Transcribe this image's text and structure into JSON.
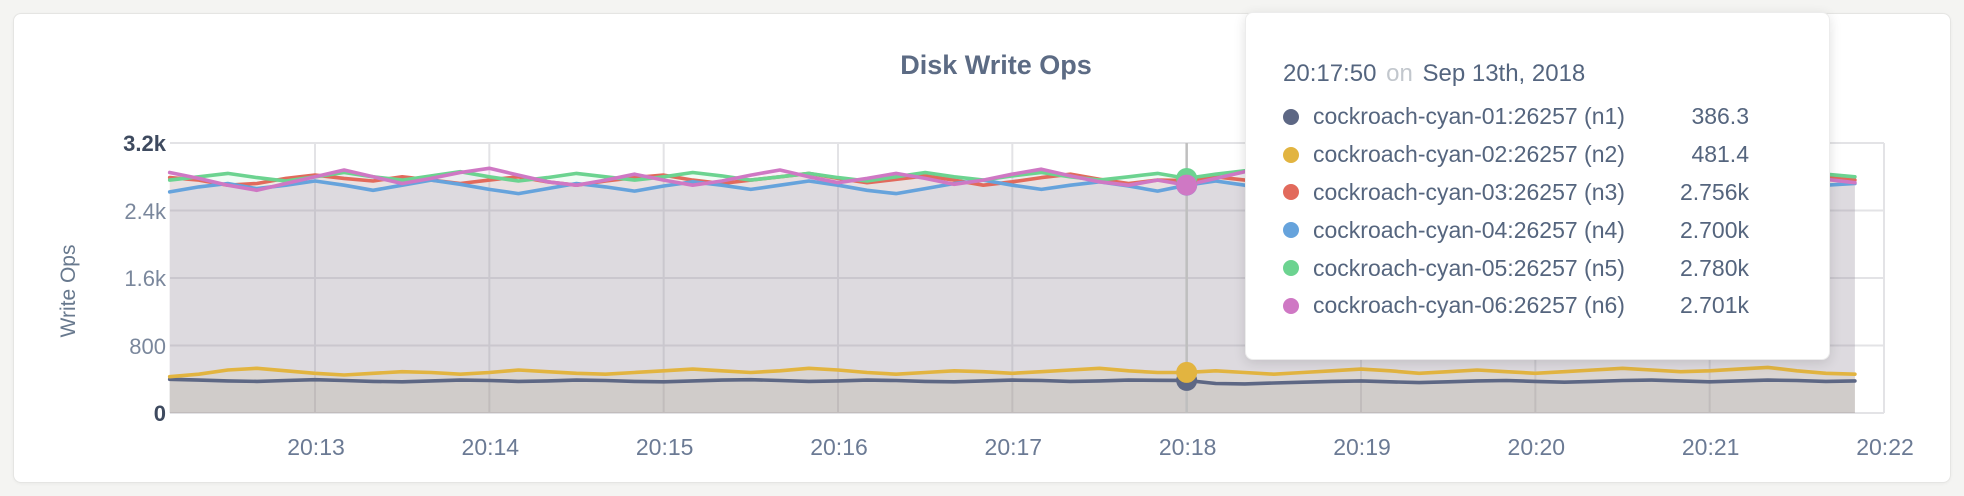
{
  "chart_data": {
    "type": "line",
    "title": "Disk Write Ops",
    "ylabel": "Write Ops",
    "ylim": [
      0,
      3200
    ],
    "grid": true,
    "x_interval_seconds": 10,
    "x_tick_labels": [
      "20:13",
      "20:14",
      "20:15",
      "20:16",
      "20:17",
      "20:18",
      "20:19",
      "20:20",
      "20:21",
      "20:22"
    ],
    "y_ticks": [
      {
        "label": "0",
        "value": 0,
        "maxmin": true
      },
      {
        "label": "800",
        "value": 800,
        "maxmin": false
      },
      {
        "label": "1.6k",
        "value": 1600,
        "maxmin": false
      },
      {
        "label": "2.4k",
        "value": 2400,
        "maxmin": false
      },
      {
        "label": "3.2k",
        "value": 3200,
        "maxmin": true
      }
    ],
    "series": [
      {
        "name": "cockroach-cyan-01:26257 (n1)",
        "color": "#5d6784",
        "values": [
          400,
          390,
          380,
          375,
          385,
          395,
          385,
          375,
          370,
          380,
          390,
          385,
          375,
          380,
          390,
          385,
          375,
          370,
          380,
          390,
          395,
          385,
          375,
          380,
          390,
          385,
          375,
          370,
          380,
          390,
          385,
          375,
          380,
          390,
          388,
          386.3,
          350,
          345,
          355,
          365,
          375,
          380,
          370,
          360,
          370,
          380,
          385,
          375,
          365,
          375,
          385,
          390,
          380,
          370,
          380,
          390,
          385,
          375,
          380
        ]
      },
      {
        "name": "cockroach-cyan-02:26257 (n2)",
        "color": "#e2b440",
        "values": [
          430,
          460,
          510,
          530,
          500,
          470,
          450,
          470,
          490,
          480,
          460,
          480,
          510,
          490,
          470,
          460,
          480,
          500,
          520,
          500,
          480,
          500,
          530,
          510,
          480,
          460,
          480,
          500,
          490,
          470,
          490,
          510,
          530,
          500,
          480,
          481.4,
          500,
          480,
          460,
          480,
          500,
          520,
          500,
          470,
          490,
          510,
          490,
          470,
          490,
          510,
          530,
          510,
          490,
          500,
          520,
          540,
          500,
          470,
          460
        ]
      },
      {
        "name": "cockroach-cyan-03:26257 (n3)",
        "color": "#e26a5c",
        "values": [
          2790,
          2760,
          2700,
          2720,
          2780,
          2820,
          2780,
          2750,
          2800,
          2760,
          2720,
          2760,
          2800,
          2740,
          2700,
          2750,
          2790,
          2820,
          2760,
          2720,
          2760,
          2800,
          2840,
          2780,
          2730,
          2770,
          2810,
          2760,
          2700,
          2740,
          2790,
          2830,
          2770,
          2720,
          2760,
          2756,
          2800,
          2760,
          2710,
          2750,
          2800,
          2840,
          2790,
          2740,
          2780,
          2820,
          2760,
          2700,
          2750,
          2800,
          2760,
          2720,
          2770,
          2810,
          2760,
          2710,
          2750,
          2790,
          2760
        ]
      },
      {
        "name": "cockroach-cyan-04:26257 (n4)",
        "color": "#66a3dc",
        "values": [
          2620,
          2680,
          2720,
          2660,
          2700,
          2750,
          2700,
          2640,
          2700,
          2760,
          2710,
          2650,
          2600,
          2660,
          2720,
          2680,
          2630,
          2690,
          2740,
          2700,
          2650,
          2700,
          2750,
          2700,
          2640,
          2600,
          2660,
          2720,
          2760,
          2700,
          2650,
          2700,
          2740,
          2690,
          2630,
          2700,
          2750,
          2700,
          2620,
          2560,
          2620,
          2690,
          2730,
          2680,
          2620,
          2680,
          2730,
          2690,
          2640,
          2690,
          2740,
          2700,
          2650,
          2700,
          2750,
          2710,
          2660,
          2700,
          2720
        ]
      },
      {
        "name": "cockroach-cyan-05:26257 (n5)",
        "color": "#6cd390",
        "values": [
          2760,
          2800,
          2840,
          2790,
          2750,
          2800,
          2850,
          2800,
          2760,
          2810,
          2860,
          2800,
          2750,
          2790,
          2840,
          2800,
          2760,
          2800,
          2850,
          2810,
          2760,
          2800,
          2840,
          2790,
          2750,
          2800,
          2850,
          2800,
          2760,
          2810,
          2850,
          2800,
          2760,
          2800,
          2840,
          2780,
          2830,
          2870,
          2820,
          2770,
          2810,
          2850,
          2800,
          2750,
          2800,
          2840,
          2790,
          2740,
          2790,
          2830,
          2790,
          2750,
          2800,
          2840,
          2800,
          2750,
          2790,
          2830,
          2800
        ]
      },
      {
        "name": "cockroach-cyan-06:26257 (n6)",
        "color": "#cf78c4",
        "values": [
          2850,
          2780,
          2700,
          2640,
          2720,
          2800,
          2880,
          2800,
          2720,
          2780,
          2850,
          2900,
          2820,
          2740,
          2700,
          2760,
          2830,
          2760,
          2700,
          2750,
          2820,
          2880,
          2800,
          2730,
          2780,
          2840,
          2780,
          2710,
          2760,
          2830,
          2890,
          2810,
          2740,
          2700,
          2760,
          2701,
          2780,
          2860,
          2950,
          2850,
          2750,
          2700,
          2760,
          2830,
          2770,
          2710,
          2760,
          2820,
          2760,
          2700,
          2750,
          2810,
          2860,
          2790,
          2720,
          2760,
          2820,
          2770,
          2730
        ]
      }
    ]
  },
  "tooltip": {
    "time": "20:17:50",
    "separator": "on",
    "date": "Sep 13th, 2018",
    "hover_index": 35,
    "rows": [
      {
        "label": "cockroach-cyan-01:26257 (n1)",
        "value": "386.3",
        "color": "#5d6784"
      },
      {
        "label": "cockroach-cyan-02:26257 (n2)",
        "value": "481.4",
        "color": "#e2b440"
      },
      {
        "label": "cockroach-cyan-03:26257 (n3)",
        "value": "2.756k",
        "color": "#e26a5c"
      },
      {
        "label": "cockroach-cyan-04:26257 (n4)",
        "value": "2.700k",
        "color": "#66a3dc"
      },
      {
        "label": "cockroach-cyan-05:26257 (n5)",
        "value": "2.780k",
        "color": "#6cd390"
      },
      {
        "label": "cockroach-cyan-06:26257 (n6)",
        "value": "2.701k",
        "color": "#cf78c4"
      }
    ]
  },
  "colors": {
    "page_background": "#f4f4f2",
    "card_background": "#ffffff",
    "grid_line": "#e3e3e6",
    "hover_guideline": "#bfbfbf",
    "title_text": "#5c6b84",
    "tick_text": "#7a879c",
    "tick_maxmin_text": "#3e4a5f"
  }
}
